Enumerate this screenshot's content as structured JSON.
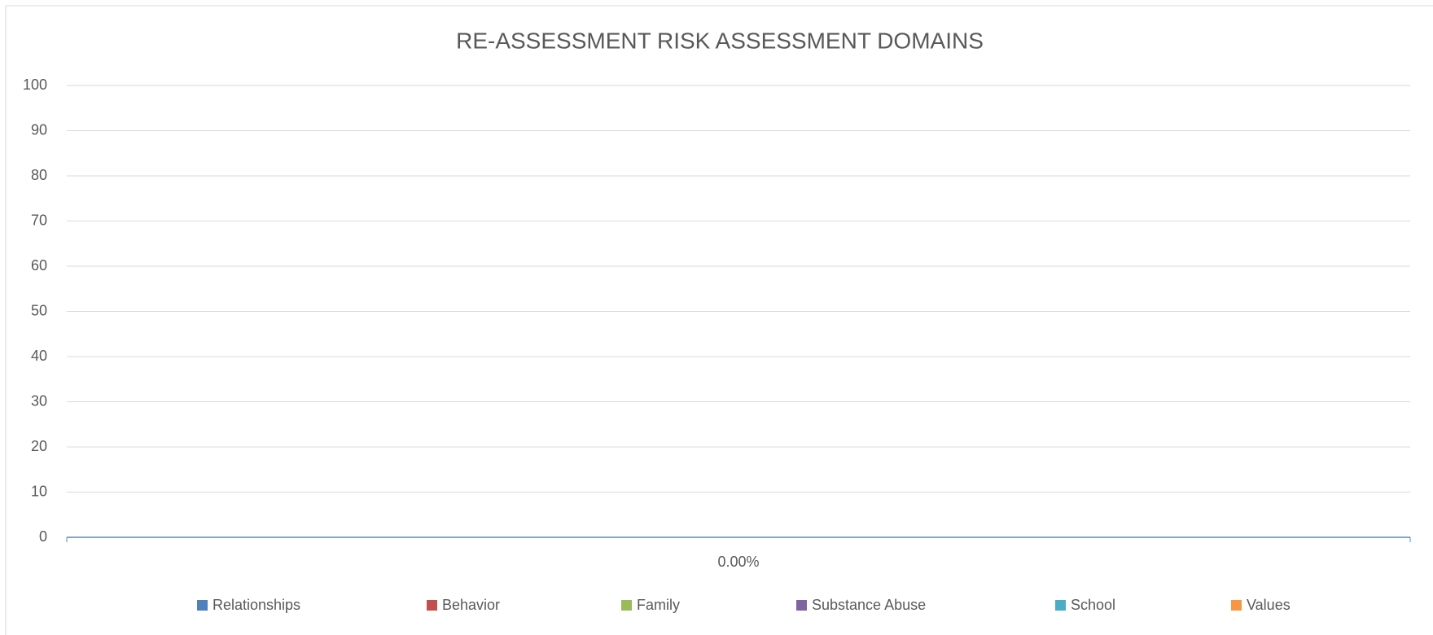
{
  "chart_data": {
    "type": "bar",
    "title": "RE-ASSESSMENT RISK ASSESSMENT DOMAINS",
    "categories": [
      "0.00%"
    ],
    "series": [
      {
        "name": "Relationships",
        "color": "#4f81bd",
        "values": [
          0
        ]
      },
      {
        "name": "Behavior",
        "color": "#c0504d",
        "values": [
          0
        ]
      },
      {
        "name": "Family",
        "color": "#9bbb59",
        "values": [
          0
        ]
      },
      {
        "name": "Substance Abuse",
        "color": "#8064a2",
        "values": [
          0
        ]
      },
      {
        "name": "School",
        "color": "#4bacc6",
        "values": [
          0
        ]
      },
      {
        "name": "Values",
        "color": "#f79646",
        "values": [
          0
        ]
      }
    ],
    "ylim": [
      0,
      100
    ],
    "yticks": [
      0,
      10,
      20,
      30,
      40,
      50,
      60,
      70,
      80,
      90,
      100
    ],
    "grid": true,
    "legend": "bottom"
  }
}
